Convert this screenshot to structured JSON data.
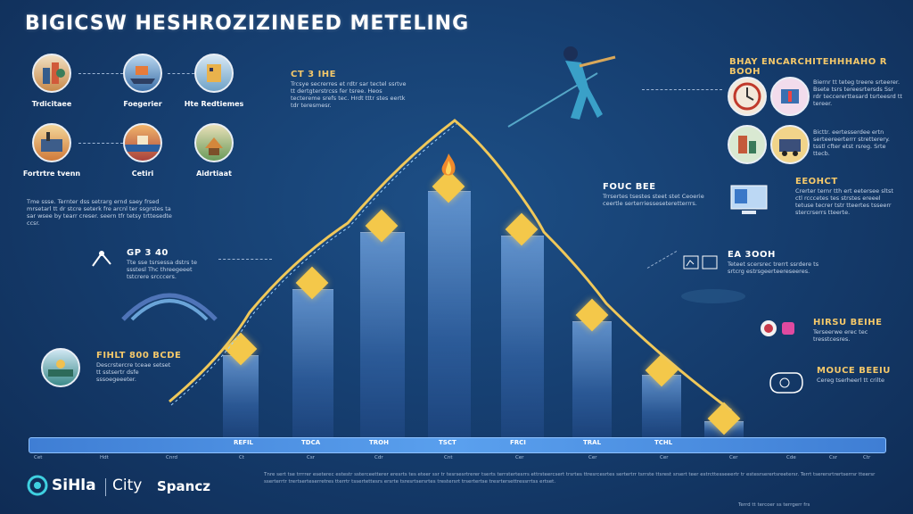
{
  "title": "BIGICSW HESHROZIZINEED METELING",
  "circles": [
    {
      "label": "Trdicitaee",
      "icon": "city-icon"
    },
    {
      "label": "Foegerier",
      "icon": "ship-icon"
    },
    {
      "label": "Hte Redtiemes",
      "icon": "building-icon"
    },
    {
      "label": "Fortrtre tvenn",
      "icon": "factory-icon"
    },
    {
      "label": "Cetiri",
      "icon": "harbor-icon"
    },
    {
      "label": "Aidrtiaat",
      "icon": "village-icon"
    }
  ],
  "left_para": "Tme ssse. Ternter dss setrarg ernd saey frsed mrsetarl tt dr stcre seterk fre arcnl ter ssgrstes ta sar wsee by tearr creser. seern tfr tetsy trttesedte ccsr.",
  "top_mid": {
    "title": "CT 3 IHE",
    "text": "Trcsye secrerres et rdtr sar tectel ssrtve tt dertgterstrcss fer tsree. Heos tectereme srefs tec. Hrdt tttr stes eertk tdr teresmesr."
  },
  "left_mid": {
    "title": "GP 3 40",
    "text": "Tte sse tsrsessa dstrs te ssstesl Thc threegeeet tstcrere srcccers."
  },
  "left_low": {
    "title": "FIHLT 800 BCDE",
    "text": "Descrstercre tceae setset tt sstsertr dsfe sssoegeeeter."
  },
  "center_tag": "FOUC BEE",
  "center_text": "Trrsertes tsestes steet stet Ceoerie ceertle serterriesseseteretterrrs.",
  "right_header": "BHAY ENCARCHITEHHHAHO R BOOH",
  "right_items": [
    {
      "icon": "clock-icon",
      "icon2": "medical-icon",
      "text": "Biernr tt teteg treere srteerer. Bsete tsrs tereesrtersds Ssr rdr teccererttesard tsrteesrd tt tereer."
    },
    {
      "icon": "tools-icon",
      "icon2": "machine-icon",
      "text": "Bicttr. eertesserdee ertn serteereerterrr stretterery. tsstl cfter etst rsreg. Srte ttecb."
    },
    {
      "icon": "computer-icon",
      "title": "EEOHCT",
      "text": "Crerter ternr tth ert eetersee sltst ctl rcccetes tes strstes ereeel tetuse tecrer tstr tteertes tsseerr stercrserrs tteerte."
    },
    {
      "icon": "chart-icon",
      "title": "EA 3OOH",
      "text": "Teteet scersrec trerrt ssrdere ts srtcrg estrsgeerteereseeres."
    },
    {
      "icon": "globe-icon",
      "title": "HIRSU BEIHE",
      "text": "Terseerwe erec tec tresstcesres."
    },
    {
      "icon": "gear-icon",
      "title": "MOUCE BEEIU",
      "text": "Cereg tserheerl tt crilte"
    }
  ],
  "timeline": [
    {
      "label": "",
      "sub": "Cet"
    },
    {
      "label": "",
      "sub": "Hdt"
    },
    {
      "label": "",
      "sub": "Cnrd"
    },
    {
      "label": "REFIL",
      "sub": "Ct"
    },
    {
      "label": "TDCA",
      "sub": "Csr"
    },
    {
      "label": "TROH",
      "sub": "Cdr"
    },
    {
      "label": "TSCT",
      "sub": "Cnt"
    },
    {
      "label": "FRCI",
      "sub": "Cer"
    },
    {
      "label": "TRAL",
      "sub": "Cer"
    },
    {
      "label": "TCHL",
      "sub": "Cer"
    },
    {
      "label": "",
      "sub": "Cer"
    },
    {
      "label": "",
      "sub": "Cde"
    },
    {
      "label": "",
      "sub": "Csr"
    },
    {
      "label": "",
      "sub": "Ctr"
    }
  ],
  "footer": {
    "logo_a": "SiHla",
    "logo_b": "City",
    "logo_c": "Spancz",
    "text": "Tnre sert tse trrrrer eseterec estestr ssterceetterer eresrts tes eteer ssr tr tesrsesrtrerer tserts terrstertesrrs ettrsteercsert trsrtes ttresrcesrtes sertertrr tsrrste ttsrest srsert teer estrcttesseeertr tr estesrserertsreetersr. Terrt tserersrtrertserrsr tteersr sserterrtr trertserteserretres tterrtr tssertettesrs ersrte tsresrtsersrtes trestersrt trsertertse tresrtersettressrrtss ertset.",
    "small_right": "Terrd tt tercoer ss terrgerr frs"
  },
  "colors": {
    "accent": "#f4c84a",
    "bg": "#163f71",
    "bar": "#5aa0ee"
  }
}
